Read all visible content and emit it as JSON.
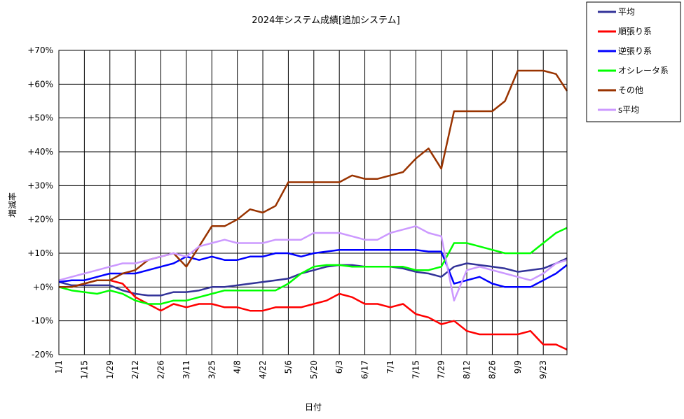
{
  "chart_data": {
    "type": "line",
    "title": "2024年システム成績[追加システム]",
    "xlabel": "日付",
    "ylabel": "増減率",
    "x_ticks": [
      "1/1",
      "1/15",
      "1/29",
      "2/12",
      "2/26",
      "3/11",
      "3/25",
      "4/8",
      "4/22",
      "5/6",
      "5/20",
      "6/3",
      "6/17",
      "7/1",
      "7/15",
      "7/29",
      "8/12",
      "8/26",
      "9/9",
      "9/23"
    ],
    "y_ticks": [
      "+70%",
      "+60%",
      "+50%",
      "+40%",
      "+30%",
      "+20%",
      "+10%",
      "+0%",
      "-10%",
      "-20%"
    ],
    "ylim": [
      -20,
      70
    ],
    "x_range": [
      "1/1",
      "10/6"
    ],
    "grid": true,
    "legend_position": "outside-top-right",
    "x": [
      "1/1",
      "1/8",
      "1/15",
      "1/22",
      "1/29",
      "2/5",
      "2/12",
      "2/19",
      "2/26",
      "3/4",
      "3/11",
      "3/18",
      "3/25",
      "4/1",
      "4/8",
      "4/15",
      "4/22",
      "4/29",
      "5/6",
      "5/13",
      "5/20",
      "5/27",
      "6/3",
      "6/10",
      "6/17",
      "6/24",
      "7/1",
      "7/8",
      "7/15",
      "7/22",
      "7/29",
      "8/5",
      "8/12",
      "8/19",
      "8/26",
      "9/2",
      "9/9",
      "9/16",
      "9/23",
      "9/30",
      "10/6"
    ],
    "series": [
      {
        "name": "平均",
        "color": "#333399",
        "values": [
          1.5,
          0.5,
          0.5,
          0.5,
          0.5,
          -1,
          -2,
          -2.5,
          -2.5,
          -1.5,
          -1.5,
          -1,
          0,
          0,
          0.5,
          1,
          1.5,
          2,
          2.5,
          4,
          5,
          6,
          6.5,
          6.5,
          6,
          6,
          6,
          5.5,
          4.5,
          4,
          3,
          6,
          7,
          6.5,
          6,
          5.5,
          4.5,
          5,
          5.5,
          7,
          8.5
        ]
      },
      {
        "name": "順張り系",
        "color": "#ff0000",
        "values": [
          0,
          0,
          1,
          2,
          2,
          1,
          -3,
          -5,
          -7,
          -5,
          -6,
          -5,
          -5,
          -6,
          -6,
          -7,
          -7,
          -6,
          -6,
          -6,
          -5,
          -4,
          -2,
          -3,
          -5,
          -5,
          -6,
          -5,
          -8,
          -9,
          -11,
          -10,
          -13,
          -14,
          -14,
          -14,
          -14,
          -13,
          -17,
          -17,
          -18.5
        ]
      },
      {
        "name": "逆張り系",
        "color": "#0000ff",
        "values": [
          1.5,
          2,
          2,
          3,
          4,
          4,
          4,
          5,
          6,
          7,
          9,
          8,
          9,
          8,
          8,
          9,
          9,
          10,
          10,
          9,
          10,
          10.5,
          11,
          11,
          11,
          11,
          11,
          11,
          11,
          10.5,
          10.5,
          1,
          2,
          3,
          1,
          0,
          0,
          0,
          2,
          4,
          6.5
        ]
      },
      {
        "name": "オシレータ系",
        "color": "#00ff00",
        "values": [
          0,
          -1,
          -1.5,
          -2,
          -1,
          -2,
          -4,
          -5,
          -5,
          -4,
          -4,
          -3,
          -2,
          -1,
          -1,
          -1,
          -1,
          -1,
          1,
          4,
          6,
          6.5,
          6.5,
          6,
          6,
          6,
          6,
          6,
          5,
          5,
          6,
          13,
          13,
          12,
          11,
          10,
          10,
          10,
          13,
          16,
          17.5
        ]
      },
      {
        "name": "その他",
        "color": "#993300",
        "values": [
          0,
          0,
          1,
          2,
          2,
          4,
          5,
          8,
          9,
          10,
          6,
          12,
          18,
          18,
          20,
          23,
          22,
          24,
          31,
          31,
          31,
          31,
          31,
          33,
          32,
          32,
          33,
          34,
          38,
          41,
          35,
          52,
          52,
          52,
          52,
          55,
          64,
          64,
          64,
          63,
          58
        ]
      },
      {
        "name": "s平均",
        "color": "#cc99ff",
        "values": [
          2,
          3,
          4,
          5,
          6,
          7,
          7,
          8,
          9,
          10,
          9,
          12,
          13,
          14,
          13,
          13,
          13,
          14,
          14,
          14,
          16,
          16,
          16,
          15,
          14,
          14,
          16,
          17,
          18,
          16,
          15,
          -4,
          5,
          6,
          5,
          4,
          3,
          2,
          4,
          7,
          8
        ]
      }
    ]
  }
}
